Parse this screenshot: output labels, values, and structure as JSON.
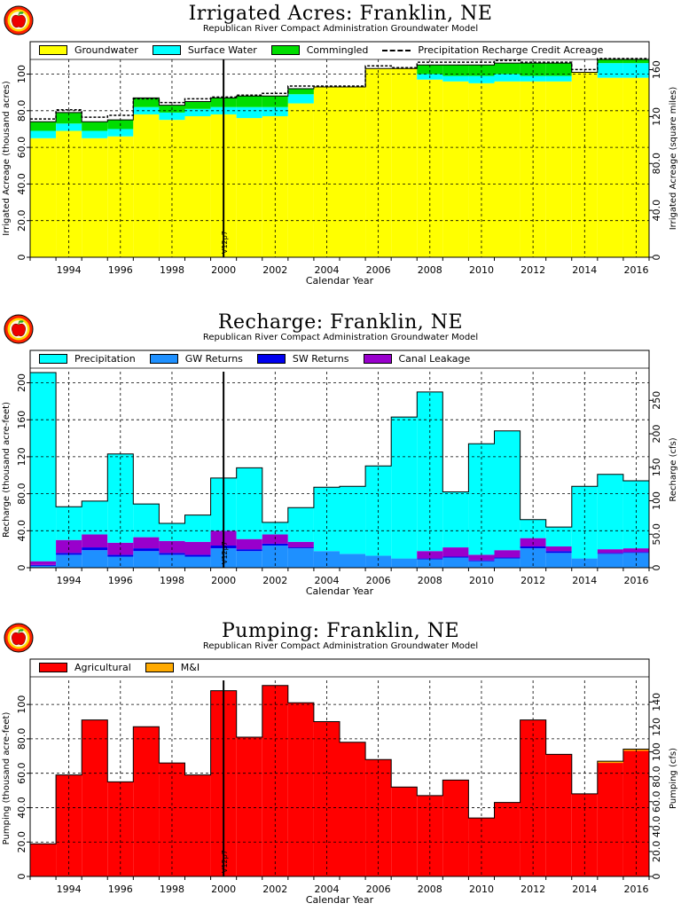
{
  "colors": {
    "groundwater": "#ffff00",
    "surface_water": "#00ffff",
    "commingled": "#00dd00",
    "precipitation": "#00ffff",
    "gw_returns": "#1e90ff",
    "sw_returns": "#0000ee",
    "canal_leakage": "#9900cc",
    "agricultural": "#ff0000",
    "mi": "#ffaa00",
    "logo_ring_outer": "#ff2200",
    "logo_ring_mid": "#ffd700",
    "logo_apple": "#ee0000"
  },
  "icons": [
    "apple-logo-icon"
  ],
  "panels": [
    {
      "title": "Irrigated Acres: Franklin, NE",
      "subtitle": "Republican River Compact Administration Groundwater Model",
      "legend": [
        "Groundwater",
        "Surface Water",
        "Commingled",
        "Precipitation Recharge Credit Acreage"
      ],
      "xlabel": "Calendar Year",
      "ylabel": "Irrigated Acreage (thousand acres)",
      "y2label": "Irrigated Acreage (square miles)",
      "marker_label": "V12p7",
      "x_ticks": [
        "1994",
        "1996",
        "1998",
        "2000",
        "2002",
        "2004",
        "2006",
        "2008",
        "2010",
        "2012",
        "2014",
        "2016"
      ],
      "y_ticks": [
        "0",
        "20.0",
        "40.0",
        "60.0",
        "80.0",
        "100"
      ],
      "y2_ticks": [
        "0",
        "40.0",
        "80.0",
        "120",
        "160"
      ]
    },
    {
      "title": "Recharge: Franklin, NE",
      "subtitle": "Republican River Compact Administration Groundwater Model",
      "legend": [
        "Precipitation",
        "GW Returns",
        "SW Returns",
        "Canal Leakage"
      ],
      "xlabel": "Calendar Year",
      "ylabel": "Recharge (thousand acre-feet)",
      "y2label": "Recharge (cfs)",
      "marker_label": "V12p7",
      "x_ticks": [
        "1994",
        "1996",
        "1998",
        "2000",
        "2002",
        "2004",
        "2006",
        "2008",
        "2010",
        "2012",
        "2014",
        "2016"
      ],
      "y_ticks": [
        "0",
        "40.0",
        "80.0",
        "120",
        "160",
        "200"
      ],
      "y2_ticks": [
        "0",
        "50.0",
        "100",
        "150",
        "200",
        "250"
      ]
    },
    {
      "title": "Pumping: Franklin, NE",
      "subtitle": "Republican River Compact Administration Groundwater Model",
      "legend": [
        "Agricultural",
        "M&I"
      ],
      "xlabel": "Calendar Year",
      "ylabel": "Pumping (thousand acre-feet)",
      "y2label": "Pumping (cfs)",
      "marker_label": "V12p7",
      "x_ticks": [
        "1994",
        "1996",
        "1998",
        "2000",
        "2002",
        "2004",
        "2006",
        "2008",
        "2010",
        "2012",
        "2014",
        "2016"
      ],
      "y_ticks": [
        "0",
        "20.0",
        "40.0",
        "60.0",
        "80.0",
        "100"
      ],
      "y2_ticks": [
        "0",
        "20.0",
        "40.0",
        "60.0",
        "80.0",
        "100",
        "120",
        "140"
      ]
    }
  ],
  "chart_data": [
    {
      "type": "area",
      "stacked": true,
      "step": true,
      "title": "Irrigated Acres: Franklin, NE",
      "subtitle": "Republican River Compact Administration Groundwater Model",
      "xlabel": "Calendar Year",
      "ylabel": "Irrigated Acreage (thousand acres)",
      "y2label": "Irrigated Acreage (square miles)",
      "xlim": [
        1993,
        2017
      ],
      "ylim": [
        0,
        108
      ],
      "y2lim": [
        0,
        168.75
      ],
      "grid": true,
      "legend_position": "top",
      "marker_year": 2000.5,
      "x": [
        1993,
        1994,
        1995,
        1996,
        1997,
        1998,
        1999,
        2000,
        2001,
        2002,
        2003,
        2004,
        2005,
        2006,
        2007,
        2008,
        2009,
        2010,
        2011,
        2012,
        2013,
        2014,
        2015,
        2016
      ],
      "series": [
        {
          "name": "Groundwater",
          "values": [
            65,
            69,
            65,
            66,
            78,
            75,
            77,
            78,
            76,
            77,
            84,
            93,
            93,
            103,
            103,
            97,
            96,
            95,
            96,
            96,
            96,
            101,
            98,
            98
          ]
        },
        {
          "name": "Surface Water",
          "values": [
            4,
            4,
            4,
            4,
            4,
            4,
            4,
            4,
            6,
            5,
            5,
            0,
            0,
            0,
            0,
            3,
            3,
            4,
            4,
            3,
            3,
            0,
            8,
            8
          ]
        },
        {
          "name": "Commingled",
          "values": [
            5,
            6,
            5,
            5,
            5,
            4,
            4,
            5,
            6,
            6,
            3,
            0,
            0,
            0,
            0,
            5,
            6,
            6,
            6,
            7,
            7,
            0,
            2,
            2
          ]
        },
        {
          "name": "Precipitation Recharge Credit Acreage",
          "values": [
            75,
            80,
            76,
            77,
            86,
            84,
            86,
            87,
            88,
            89,
            93,
            93,
            93,
            104,
            103,
            106,
            106,
            106,
            107,
            106,
            106,
            102,
            108,
            108
          ]
        }
      ]
    },
    {
      "type": "area",
      "stacked": true,
      "step": true,
      "title": "Recharge: Franklin, NE",
      "subtitle": "Republican River Compact Administration Groundwater Model",
      "xlabel": "Calendar Year",
      "ylabel": "Recharge (thousand acre-feet)",
      "y2label": "Recharge (cfs)",
      "xlim": [
        1993,
        2017
      ],
      "ylim": [
        0,
        212
      ],
      "y2lim": [
        0,
        292.8
      ],
      "grid": true,
      "legend_position": "top",
      "marker_year": 2000.5,
      "x": [
        1993,
        1994,
        1995,
        1996,
        1997,
        1998,
        1999,
        2000,
        2001,
        2002,
        2003,
        2004,
        2005,
        2006,
        2007,
        2008,
        2009,
        2010,
        2011,
        2012,
        2013,
        2014,
        2015,
        2016
      ],
      "series": [
        {
          "name": "GW Returns",
          "values": [
            2,
            14,
            19,
            12,
            18,
            14,
            12,
            21,
            18,
            24,
            21,
            18,
            15,
            13,
            10,
            9,
            11,
            7,
            10,
            21,
            16,
            10,
            15,
            16
          ]
        },
        {
          "name": "SW Returns",
          "values": [
            1,
            2,
            3,
            2,
            3,
            2,
            2,
            3,
            2,
            2,
            1,
            0,
            0,
            0,
            0,
            1,
            1,
            1,
            1,
            2,
            2,
            0,
            1,
            1
          ]
        },
        {
          "name": "Canal Leakage",
          "values": [
            4,
            14,
            14,
            13,
            12,
            13,
            14,
            16,
            11,
            10,
            6,
            0,
            0,
            0,
            0,
            8,
            10,
            6,
            8,
            9,
            5,
            0,
            4,
            4
          ]
        },
        {
          "name": "Precipitation",
          "values": [
            204,
            36,
            36,
            96,
            36,
            19,
            29,
            57,
            77,
            13,
            37,
            69,
            73,
            97,
            153,
            172,
            60,
            120,
            129,
            20,
            21,
            78,
            81,
            73
          ]
        }
      ]
    },
    {
      "type": "area",
      "stacked": true,
      "step": true,
      "title": "Pumping: Franklin, NE",
      "subtitle": "Republican River Compact Administration Groundwater Model",
      "xlabel": "Calendar Year",
      "ylabel": "Pumping (thousand acre-feet)",
      "y2label": "Pumping (cfs)",
      "xlim": [
        1993,
        2017
      ],
      "ylim": [
        0,
        114
      ],
      "y2lim": [
        0,
        157.4
      ],
      "grid": true,
      "legend_position": "top",
      "marker_year": 2000.5,
      "x": [
        1993,
        1994,
        1995,
        1996,
        1997,
        1998,
        1999,
        2000,
        2001,
        2002,
        2003,
        2004,
        2005,
        2006,
        2007,
        2008,
        2009,
        2010,
        2011,
        2012,
        2013,
        2014,
        2015,
        2016
      ],
      "series": [
        {
          "name": "Agricultural",
          "values": [
            19,
            59,
            91,
            55,
            87,
            66,
            59,
            108,
            81,
            111,
            101,
            90,
            78,
            68,
            52,
            47,
            56,
            34,
            43,
            91,
            71,
            48,
            66,
            73
          ]
        },
        {
          "name": "M&I",
          "values": [
            0,
            0,
            0,
            0,
            0,
            0,
            0,
            0,
            0,
            0,
            0,
            0,
            0,
            0,
            0,
            0,
            0,
            0,
            0,
            0,
            0,
            0,
            1,
            1
          ]
        }
      ]
    }
  ]
}
